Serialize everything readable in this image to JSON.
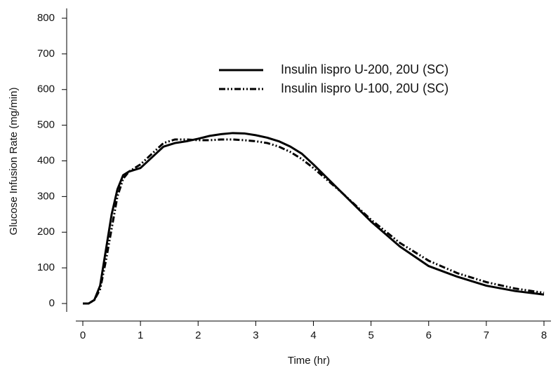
{
  "chart_data": {
    "type": "line",
    "xlabel": "Time (hr)",
    "ylabel": "Glucose Infusion Rate (mg/min)",
    "xlim": [
      0,
      8
    ],
    "xticks": [
      0,
      1,
      2,
      3,
      4,
      5,
      6,
      7,
      8
    ],
    "ylim": [
      0,
      800
    ],
    "yticks": [
      0,
      100,
      200,
      300,
      400,
      500,
      600,
      700,
      800
    ],
    "grid": false,
    "legend": "upper right",
    "x": [
      0,
      0.1,
      0.2,
      0.3,
      0.4,
      0.5,
      0.6,
      0.7,
      0.8,
      1.0,
      1.2,
      1.4,
      1.6,
      1.8,
      2.0,
      2.2,
      2.4,
      2.6,
      2.8,
      3.0,
      3.2,
      3.4,
      3.6,
      3.8,
      4.0,
      4.5,
      5.0,
      5.5,
      6.0,
      6.5,
      7.0,
      7.5,
      8.0
    ],
    "series": [
      {
        "name": "Insulin lispro U-200, 20U (SC)",
        "color": "#000000",
        "dash": "solid",
        "values": [
          0,
          0,
          10,
          50,
          150,
          250,
          320,
          360,
          370,
          380,
          410,
          440,
          450,
          455,
          462,
          470,
          475,
          478,
          477,
          472,
          465,
          455,
          440,
          420,
          390,
          310,
          230,
          160,
          105,
          75,
          50,
          35,
          25
        ]
      },
      {
        "name": "Insulin lispro U-100, 20U (SC)",
        "color": "#000000",
        "dash": "dashdot",
        "values": [
          0,
          0,
          10,
          40,
          120,
          210,
          300,
          350,
          370,
          390,
          420,
          450,
          460,
          460,
          458,
          458,
          460,
          460,
          458,
          455,
          450,
          440,
          425,
          405,
          380,
          310,
          235,
          170,
          120,
          85,
          60,
          42,
          30
        ]
      }
    ]
  }
}
